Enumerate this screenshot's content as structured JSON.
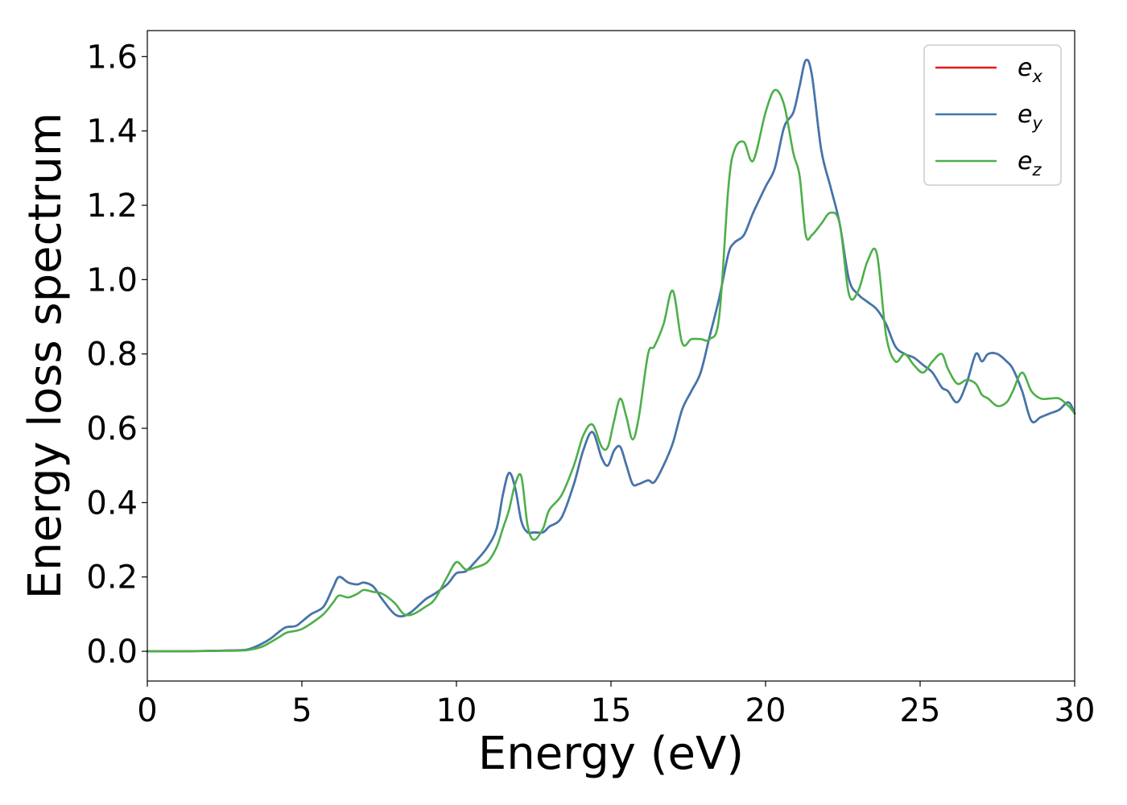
{
  "chart_data": {
    "type": "line",
    "xlabel": "Energy (eV)",
    "ylabel": "Energy loss spectrum",
    "xlim": [
      0,
      30
    ],
    "ylim": [
      -0.08,
      1.67
    ],
    "xticks": [
      0,
      5,
      10,
      15,
      20,
      25,
      30
    ],
    "xtick_labels": [
      "0",
      "5",
      "10",
      "15",
      "20",
      "25",
      "30"
    ],
    "yticks": [
      0.0,
      0.2,
      0.4,
      0.6,
      0.8,
      1.0,
      1.2,
      1.4,
      1.6
    ],
    "ytick_labels": [
      "0.0",
      "0.2",
      "0.4",
      "0.6",
      "0.8",
      "1.0",
      "1.2",
      "1.4",
      "1.6"
    ],
    "grid": false,
    "legend_position": "top-right",
    "series": [
      {
        "name": "e_x",
        "legend_base": "e",
        "legend_sub": "x",
        "color": "#e41a1c",
        "x": [
          0,
          1,
          2,
          3,
          3.3,
          3.7,
          4,
          4.3,
          4.5,
          4.8,
          5,
          5.3,
          5.7,
          6,
          6.2,
          6.5,
          6.8,
          7,
          7.3,
          7.6,
          8,
          8.3,
          8.6,
          9,
          9.3,
          9.7,
          10,
          10.3,
          10.6,
          11,
          11.3,
          11.5,
          11.7,
          11.9,
          12.1,
          12.3,
          12.5,
          12.8,
          13,
          13.4,
          13.8,
          14.1,
          14.4,
          14.7,
          14.9,
          15.1,
          15.3,
          15.5,
          15.7,
          15.9,
          16.2,
          16.4,
          16.7,
          17,
          17.3,
          17.6,
          17.9,
          18.2,
          18.5,
          18.8,
          19,
          19.3,
          19.6,
          20,
          20.3,
          20.6,
          20.9,
          21.1,
          21.3,
          21.5,
          21.8,
          22.1,
          22.4,
          22.7,
          23,
          23.3,
          23.6,
          23.9,
          24.2,
          24.5,
          24.8,
          25.1,
          25.4,
          25.7,
          25.9,
          26.2,
          26.5,
          26.8,
          27,
          27.2,
          27.5,
          27.8,
          28,
          28.3,
          28.6,
          28.9,
          29.2,
          29.5,
          29.8,
          30
        ],
        "y": [
          0,
          0,
          0.001,
          0.003,
          0.006,
          0.02,
          0.035,
          0.055,
          0.065,
          0.068,
          0.08,
          0.1,
          0.12,
          0.17,
          0.2,
          0.185,
          0.18,
          0.185,
          0.175,
          0.14,
          0.1,
          0.095,
          0.11,
          0.14,
          0.155,
          0.18,
          0.21,
          0.215,
          0.24,
          0.28,
          0.33,
          0.42,
          0.48,
          0.44,
          0.35,
          0.32,
          0.32,
          0.32,
          0.335,
          0.36,
          0.45,
          0.54,
          0.59,
          0.52,
          0.5,
          0.54,
          0.55,
          0.5,
          0.45,
          0.45,
          0.46,
          0.455,
          0.5,
          0.56,
          0.65,
          0.7,
          0.75,
          0.85,
          0.95,
          1.07,
          1.1,
          1.12,
          1.18,
          1.25,
          1.3,
          1.41,
          1.45,
          1.52,
          1.59,
          1.55,
          1.35,
          1.25,
          1.15,
          1.0,
          0.96,
          0.94,
          0.92,
          0.88,
          0.82,
          0.8,
          0.79,
          0.77,
          0.75,
          0.71,
          0.7,
          0.67,
          0.72,
          0.8,
          0.78,
          0.8,
          0.8,
          0.78,
          0.76,
          0.7,
          0.62,
          0.63,
          0.64,
          0.65,
          0.67,
          0.64
        ]
      },
      {
        "name": "e_y",
        "legend_base": "e",
        "legend_sub": "y",
        "color": "#3d78b0",
        "x": [
          0,
          1,
          2,
          3,
          3.3,
          3.7,
          4,
          4.3,
          4.5,
          4.8,
          5,
          5.3,
          5.7,
          6,
          6.2,
          6.5,
          6.8,
          7,
          7.3,
          7.6,
          8,
          8.3,
          8.6,
          9,
          9.3,
          9.7,
          10,
          10.3,
          10.6,
          11,
          11.3,
          11.5,
          11.7,
          11.9,
          12.1,
          12.3,
          12.5,
          12.8,
          13,
          13.4,
          13.8,
          14.1,
          14.4,
          14.7,
          14.9,
          15.1,
          15.3,
          15.5,
          15.7,
          15.9,
          16.2,
          16.4,
          16.7,
          17,
          17.3,
          17.6,
          17.9,
          18.2,
          18.5,
          18.8,
          19,
          19.3,
          19.6,
          20,
          20.3,
          20.6,
          20.9,
          21.1,
          21.3,
          21.5,
          21.8,
          22.1,
          22.4,
          22.7,
          23,
          23.3,
          23.6,
          23.9,
          24.2,
          24.5,
          24.8,
          25.1,
          25.4,
          25.7,
          25.9,
          26.2,
          26.5,
          26.8,
          27,
          27.2,
          27.5,
          27.8,
          28,
          28.3,
          28.6,
          28.9,
          29.2,
          29.5,
          29.8,
          30
        ],
        "y": [
          0,
          0,
          0.001,
          0.003,
          0.006,
          0.02,
          0.035,
          0.055,
          0.065,
          0.068,
          0.08,
          0.1,
          0.12,
          0.17,
          0.2,
          0.185,
          0.18,
          0.185,
          0.175,
          0.14,
          0.1,
          0.095,
          0.11,
          0.14,
          0.155,
          0.18,
          0.21,
          0.215,
          0.24,
          0.28,
          0.33,
          0.42,
          0.48,
          0.44,
          0.35,
          0.32,
          0.32,
          0.32,
          0.335,
          0.36,
          0.45,
          0.54,
          0.59,
          0.52,
          0.5,
          0.54,
          0.55,
          0.5,
          0.45,
          0.45,
          0.46,
          0.455,
          0.5,
          0.56,
          0.65,
          0.7,
          0.75,
          0.85,
          0.95,
          1.07,
          1.1,
          1.12,
          1.18,
          1.25,
          1.3,
          1.41,
          1.45,
          1.52,
          1.59,
          1.55,
          1.35,
          1.25,
          1.15,
          1.0,
          0.96,
          0.94,
          0.92,
          0.88,
          0.82,
          0.8,
          0.79,
          0.77,
          0.75,
          0.71,
          0.7,
          0.67,
          0.72,
          0.8,
          0.78,
          0.8,
          0.8,
          0.78,
          0.76,
          0.7,
          0.62,
          0.63,
          0.64,
          0.65,
          0.67,
          0.64
        ]
      },
      {
        "name": "e_z",
        "legend_base": "e",
        "legend_sub": "z",
        "color": "#4daf4a",
        "x": [
          0,
          1,
          2,
          3,
          3.3,
          3.7,
          4,
          4.3,
          4.5,
          4.8,
          5,
          5.3,
          5.7,
          6,
          6.2,
          6.5,
          6.8,
          7,
          7.3,
          7.6,
          8,
          8.3,
          8.6,
          9,
          9.3,
          9.7,
          10,
          10.3,
          10.6,
          11,
          11.3,
          11.5,
          11.7,
          11.9,
          12.1,
          12.3,
          12.5,
          12.8,
          13,
          13.4,
          13.8,
          14.1,
          14.4,
          14.7,
          14.9,
          15.1,
          15.3,
          15.5,
          15.7,
          15.9,
          16.2,
          16.4,
          16.7,
          17,
          17.3,
          17.6,
          17.9,
          18.2,
          18.5,
          18.8,
          19,
          19.3,
          19.6,
          20,
          20.3,
          20.6,
          20.9,
          21.1,
          21.3,
          21.5,
          21.8,
          22.1,
          22.4,
          22.7,
          23,
          23.3,
          23.6,
          23.9,
          24.2,
          24.5,
          24.8,
          25.1,
          25.4,
          25.7,
          25.9,
          26.2,
          26.5,
          26.8,
          27,
          27.2,
          27.5,
          27.8,
          28,
          28.3,
          28.6,
          28.9,
          29.2,
          29.5,
          29.8,
          30
        ],
        "y": [
          0,
          0,
          0.001,
          0.002,
          0.004,
          0.012,
          0.025,
          0.04,
          0.05,
          0.055,
          0.06,
          0.075,
          0.1,
          0.13,
          0.15,
          0.145,
          0.155,
          0.165,
          0.16,
          0.155,
          0.13,
          0.1,
          0.1,
          0.12,
          0.14,
          0.2,
          0.24,
          0.22,
          0.225,
          0.24,
          0.28,
          0.33,
          0.38,
          0.45,
          0.47,
          0.34,
          0.3,
          0.33,
          0.38,
          0.42,
          0.5,
          0.58,
          0.61,
          0.55,
          0.55,
          0.62,
          0.68,
          0.63,
          0.57,
          0.63,
          0.8,
          0.82,
          0.88,
          0.97,
          0.83,
          0.84,
          0.84,
          0.84,
          0.9,
          1.25,
          1.35,
          1.37,
          1.32,
          1.45,
          1.51,
          1.47,
          1.34,
          1.28,
          1.12,
          1.12,
          1.15,
          1.18,
          1.15,
          0.96,
          0.97,
          1.05,
          1.07,
          0.85,
          0.78,
          0.8,
          0.77,
          0.75,
          0.78,
          0.8,
          0.76,
          0.72,
          0.73,
          0.72,
          0.69,
          0.68,
          0.66,
          0.67,
          0.7,
          0.75,
          0.7,
          0.68,
          0.68,
          0.68,
          0.66,
          0.64
        ]
      }
    ]
  }
}
